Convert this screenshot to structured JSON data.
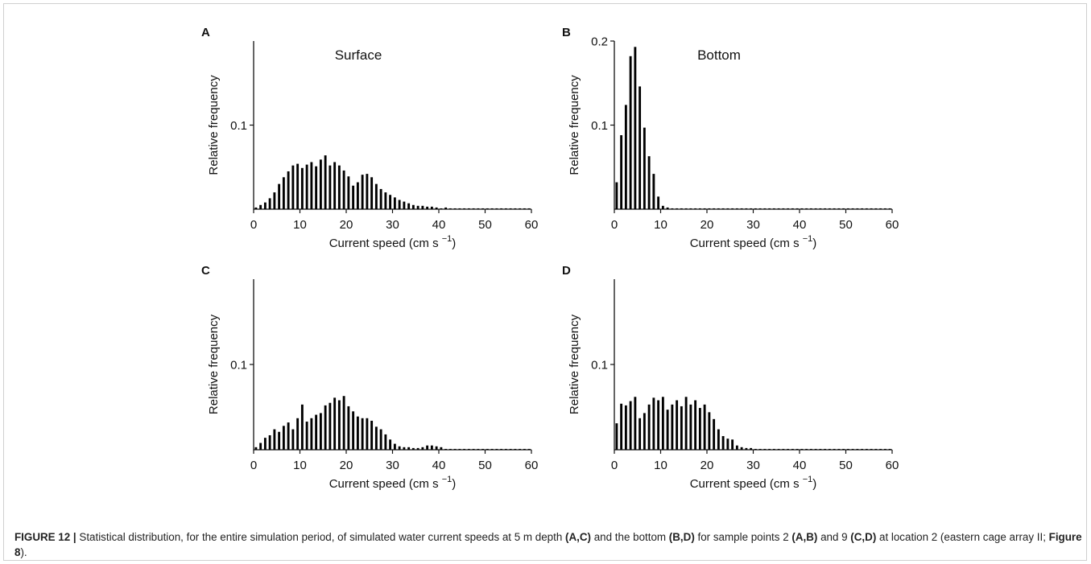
{
  "chart_data": [
    {
      "type": "bar",
      "panel_label": "A",
      "title": "Surface",
      "xlabel": "Current speed (cm s",
      "xlabel_sup": "−1",
      "xlabel_close": ")",
      "ylabel": "Relative frequency",
      "xlim": [
        0,
        60
      ],
      "ylim": [
        0,
        0.2
      ],
      "xticks": [
        "0",
        "10",
        "20",
        "30",
        "40",
        "50",
        "60"
      ],
      "yticks": [
        {
          "value": 0.1,
          "label": "0.1"
        }
      ],
      "x": [
        1,
        2,
        3,
        4,
        5,
        6,
        7,
        8,
        9,
        10,
        11,
        12,
        13,
        14,
        15,
        16,
        17,
        18,
        19,
        20,
        21,
        22,
        23,
        24,
        25,
        26,
        27,
        28,
        29,
        30,
        31,
        32,
        33,
        34,
        35,
        36,
        37,
        38,
        39,
        40,
        41,
        42,
        43,
        44,
        45,
        46,
        47,
        48,
        49,
        50,
        51,
        52,
        53,
        54,
        55,
        56,
        57,
        58,
        59,
        60
      ],
      "values": [
        0.002,
        0.005,
        0.008,
        0.013,
        0.02,
        0.03,
        0.038,
        0.045,
        0.052,
        0.054,
        0.049,
        0.053,
        0.056,
        0.051,
        0.059,
        0.064,
        0.052,
        0.056,
        0.052,
        0.046,
        0.039,
        0.028,
        0.032,
        0.041,
        0.042,
        0.038,
        0.03,
        0.024,
        0.02,
        0.017,
        0.014,
        0.011,
        0.009,
        0.007,
        0.005,
        0.004,
        0.004,
        0.003,
        0.003,
        0.002,
        0.001,
        0.002,
        0.001,
        0.001,
        0.001,
        0.001,
        0.001,
        0.001,
        0.001,
        0.001,
        0.001,
        0.001,
        0.001,
        0.001,
        0.001,
        0.001,
        0.001,
        0.001,
        0.001,
        0.001
      ]
    },
    {
      "type": "bar",
      "panel_label": "B",
      "title": "Bottom",
      "xlabel": "Current speed (cm s",
      "xlabel_sup": "−1",
      "xlabel_close": ")",
      "ylabel": "Relative frequency",
      "xlim": [
        0,
        60
      ],
      "ylim": [
        0,
        0.2
      ],
      "xticks": [
        "0",
        "10",
        "20",
        "30",
        "40",
        "50",
        "60"
      ],
      "yticks": [
        {
          "value": 0.1,
          "label": "0.1"
        },
        {
          "value": 0.2,
          "label": "0.2"
        }
      ],
      "x": [
        1,
        2,
        3,
        4,
        5,
        6,
        7,
        8,
        9,
        10,
        11,
        12,
        13,
        14,
        15,
        16,
        17,
        18,
        19,
        20,
        21,
        22,
        23,
        24,
        25,
        26,
        27,
        28,
        29,
        30,
        31,
        32,
        33,
        34,
        35,
        36,
        37,
        38,
        39,
        40,
        41,
        42,
        43,
        44,
        45,
        46,
        47,
        48,
        49,
        50,
        51,
        52,
        53,
        54,
        55,
        56,
        57,
        58,
        59,
        60
      ],
      "values": [
        0.032,
        0.088,
        0.124,
        0.182,
        0.193,
        0.146,
        0.097,
        0.063,
        0.042,
        0.015,
        0.004,
        0.002,
        0.001,
        0.001,
        0.001,
        0.001,
        0.001,
        0.001,
        0.001,
        0.001,
        0.001,
        0.001,
        0.001,
        0.001,
        0.001,
        0.001,
        0.001,
        0.001,
        0.001,
        0.001,
        0.001,
        0.001,
        0.001,
        0.001,
        0.001,
        0.001,
        0.001,
        0.001,
        0.001,
        0.001,
        0.001,
        0.001,
        0.001,
        0.001,
        0.001,
        0.001,
        0.001,
        0.001,
        0.001,
        0.001,
        0.001,
        0.001,
        0.001,
        0.001,
        0.001,
        0.001,
        0.001,
        0.001,
        0.001,
        0.001
      ]
    },
    {
      "type": "bar",
      "panel_label": "C",
      "title": "",
      "xlabel": "Current speed (cm s",
      "xlabel_sup": "−1",
      "xlabel_close": ")",
      "ylabel": "Relative frequency",
      "xlim": [
        0,
        60
      ],
      "ylim": [
        0,
        0.2
      ],
      "xticks": [
        "0",
        "10",
        "20",
        "30",
        "40",
        "50",
        "60"
      ],
      "yticks": [
        {
          "value": 0.1,
          "label": "0.1"
        }
      ],
      "x": [
        1,
        2,
        3,
        4,
        5,
        6,
        7,
        8,
        9,
        10,
        11,
        12,
        13,
        14,
        15,
        16,
        17,
        18,
        19,
        20,
        21,
        22,
        23,
        24,
        25,
        26,
        27,
        28,
        29,
        30,
        31,
        32,
        33,
        34,
        35,
        36,
        37,
        38,
        39,
        40,
        41,
        42,
        43,
        44,
        45,
        46,
        47,
        48,
        49,
        50,
        51,
        52,
        53,
        54,
        55,
        56,
        57,
        58,
        59,
        60
      ],
      "values": [
        0.003,
        0.008,
        0.014,
        0.017,
        0.024,
        0.021,
        0.028,
        0.032,
        0.024,
        0.037,
        0.053,
        0.033,
        0.037,
        0.041,
        0.043,
        0.052,
        0.055,
        0.061,
        0.058,
        0.063,
        0.051,
        0.045,
        0.039,
        0.037,
        0.037,
        0.034,
        0.027,
        0.024,
        0.018,
        0.012,
        0.007,
        0.004,
        0.003,
        0.003,
        0.002,
        0.002,
        0.003,
        0.005,
        0.005,
        0.004,
        0.003,
        0.001,
        0.001,
        0.001,
        0.001,
        0.001,
        0.001,
        0.001,
        0.001,
        0.001,
        0.001,
        0.001,
        0.001,
        0.001,
        0.001,
        0.001,
        0.001,
        0.001,
        0.001,
        0.001
      ]
    },
    {
      "type": "bar",
      "panel_label": "D",
      "title": "",
      "xlabel": "Current speed (cm s",
      "xlabel_sup": "−1",
      "xlabel_close": ")",
      "ylabel": "Relative frequency",
      "xlim": [
        0,
        60
      ],
      "ylim": [
        0,
        0.2
      ],
      "xticks": [
        "0",
        "10",
        "20",
        "30",
        "40",
        "50",
        "60"
      ],
      "yticks": [
        {
          "value": 0.1,
          "label": "0.1"
        }
      ],
      "x": [
        1,
        2,
        3,
        4,
        5,
        6,
        7,
        8,
        9,
        10,
        11,
        12,
        13,
        14,
        15,
        16,
        17,
        18,
        19,
        20,
        21,
        22,
        23,
        24,
        25,
        26,
        27,
        28,
        29,
        30,
        31,
        32,
        33,
        34,
        35,
        36,
        37,
        38,
        39,
        40,
        41,
        42,
        43,
        44,
        45,
        46,
        47,
        48,
        49,
        50,
        51,
        52,
        53,
        54,
        55,
        56,
        57,
        58,
        59,
        60
      ],
      "values": [
        0.031,
        0.054,
        0.052,
        0.057,
        0.062,
        0.037,
        0.043,
        0.053,
        0.061,
        0.058,
        0.062,
        0.047,
        0.053,
        0.058,
        0.051,
        0.062,
        0.053,
        0.058,
        0.049,
        0.053,
        0.044,
        0.036,
        0.024,
        0.016,
        0.013,
        0.012,
        0.005,
        0.003,
        0.002,
        0.002,
        0.001,
        0.001,
        0.001,
        0.001,
        0.001,
        0.001,
        0.001,
        0.001,
        0.001,
        0.001,
        0.001,
        0.001,
        0.001,
        0.001,
        0.001,
        0.001,
        0.001,
        0.001,
        0.001,
        0.001,
        0.001,
        0.001,
        0.001,
        0.001,
        0.001,
        0.001,
        0.001,
        0.001,
        0.001,
        0.001
      ]
    }
  ],
  "caption": {
    "label": "FIGURE 12 |",
    "text_1": " Statistical distribution, for the entire simulation period, of simulated water current speeds at 5 m depth ",
    "ref_1": "(A,C)",
    "text_2": " and the bottom ",
    "ref_2": "(B,D)",
    "text_3": " for sample points 2 ",
    "ref_3": "(A,B)",
    "text_4": " and 9 ",
    "ref_4": "(C,D)",
    "text_5": " at location 2 (eastern cage array II; ",
    "ref_5": "Figure 8",
    "text_6": ")."
  }
}
